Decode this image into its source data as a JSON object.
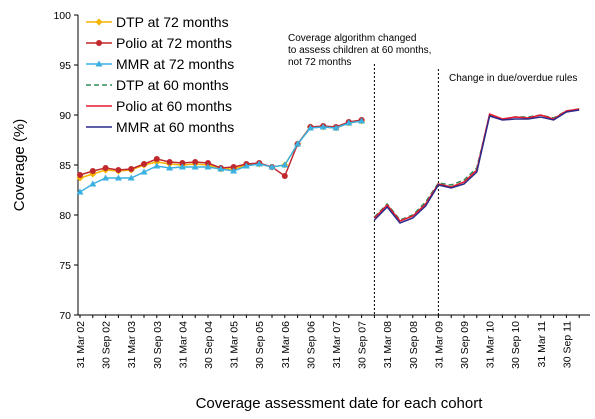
{
  "chart_data": {
    "type": "line",
    "xlabel": "Coverage assessment date for each cohort",
    "ylabel": "Coverage (%)",
    "annotations": [
      [
        "Coverage algorithm changed",
        "to assess children at 60 months,",
        "not 72 months"
      ],
      [
        "Change in due/overdue rules"
      ]
    ],
    "categories": [
      "31 Mar 02",
      null,
      "30 Sep 02",
      null,
      "31 Mar 03",
      null,
      "30 Sep 03",
      null,
      "31 Mar 04",
      null,
      "30 Sep 04",
      null,
      "31 Mar 05",
      null,
      "30 Sep 05",
      null,
      "31 Mar 06",
      null,
      "30 Sep 06",
      null,
      "31 Mar 07",
      null,
      "30 Sep 07",
      null,
      "31 Mar 08",
      null,
      "30 Sep 08",
      null,
      "31 Mar 09",
      null,
      "30 Sep 09",
      null,
      "31 Mar 10",
      null,
      "30 Sep 10",
      null,
      "31 Mar 11",
      null,
      "30 Sep 11",
      null
    ],
    "ylim": [
      70,
      100
    ],
    "yticks": [
      70,
      75,
      80,
      85,
      90,
      95,
      100
    ],
    "legend": "upper left",
    "series": [
      {
        "name": "DTP at 72 months",
        "color": "#f5b400",
        "marker": "diamond",
        "dash": false,
        "values": [
          83.7,
          84.1,
          84.5,
          84.4,
          84.5,
          85.0,
          85.3,
          85.1,
          85.0,
          85.1,
          85.0,
          84.6,
          84.6,
          85.0,
          85.1,
          84.8,
          85.0,
          87.1,
          88.8,
          88.8,
          88.7,
          89.2,
          89.4,
          null,
          null,
          null,
          null,
          null,
          null,
          null,
          null,
          null,
          null,
          null,
          null,
          null,
          null,
          null,
          null,
          null
        ]
      },
      {
        "name": "Polio at 72 months",
        "color": "#c0282d",
        "marker": "circle",
        "dash": false,
        "values": [
          84.0,
          84.4,
          84.7,
          84.5,
          84.6,
          85.1,
          85.6,
          85.3,
          85.2,
          85.3,
          85.2,
          84.7,
          84.8,
          85.1,
          85.2,
          84.8,
          83.9,
          87.1,
          88.8,
          88.9,
          88.8,
          89.3,
          89.5,
          null,
          null,
          null,
          null,
          null,
          null,
          null,
          null,
          null,
          null,
          null,
          null,
          null,
          null,
          null,
          null,
          null
        ]
      },
      {
        "name": "MMR at 72 months",
        "color": "#3ab0e0",
        "marker": "triangle",
        "dash": false,
        "values": [
          82.3,
          83.1,
          83.7,
          83.7,
          83.7,
          84.3,
          84.9,
          84.7,
          84.8,
          84.8,
          84.8,
          84.6,
          84.4,
          84.9,
          85.1,
          84.8,
          85.0,
          87.1,
          88.7,
          88.8,
          88.7,
          89.2,
          89.4,
          null,
          null,
          null,
          null,
          null,
          null,
          null,
          null,
          null,
          null,
          null,
          null,
          null,
          null,
          null,
          null,
          null
        ]
      },
      {
        "name": "DTP at 60 months",
        "color": "#2e8b57",
        "marker": null,
        "dash": true,
        "values": [
          null,
          null,
          null,
          null,
          null,
          null,
          null,
          null,
          null,
          null,
          null,
          null,
          null,
          null,
          null,
          null,
          null,
          null,
          null,
          null,
          null,
          null,
          null,
          79.8,
          81.1,
          79.5,
          80.0,
          81.3,
          83.2,
          83.0,
          83.5,
          84.7,
          90.0,
          89.6,
          89.8,
          89.8,
          90.0,
          89.7,
          90.4,
          90.6
        ]
      },
      {
        "name": "Polio at 60 months",
        "color": "#e8192c",
        "marker": null,
        "dash": false,
        "values": [
          null,
          null,
          null,
          null,
          null,
          null,
          null,
          null,
          null,
          null,
          null,
          null,
          null,
          null,
          null,
          null,
          null,
          null,
          null,
          null,
          null,
          null,
          null,
          79.7,
          81.0,
          79.4,
          79.9,
          81.1,
          83.1,
          82.8,
          83.3,
          84.5,
          90.1,
          89.6,
          89.8,
          89.7,
          90.0,
          89.6,
          90.4,
          90.6
        ]
      },
      {
        "name": "MMR at 60 months",
        "color": "#2b2b8c",
        "marker": null,
        "dash": false,
        "values": [
          null,
          null,
          null,
          null,
          null,
          null,
          null,
          null,
          null,
          null,
          null,
          null,
          null,
          null,
          null,
          null,
          null,
          null,
          null,
          null,
          null,
          null,
          null,
          79.5,
          80.8,
          79.2,
          79.7,
          80.9,
          83.0,
          82.7,
          83.1,
          84.3,
          89.9,
          89.5,
          89.6,
          89.6,
          89.8,
          89.5,
          90.3,
          90.5
        ]
      }
    ]
  }
}
